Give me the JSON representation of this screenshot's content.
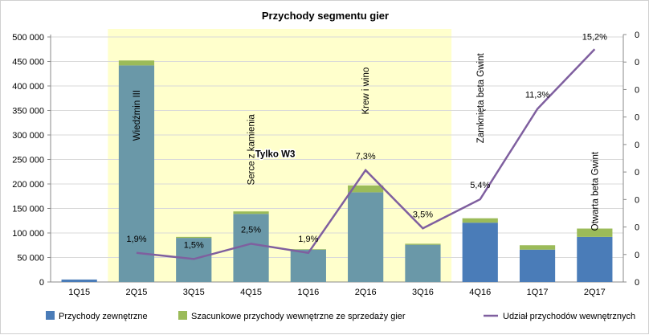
{
  "chart_data": {
    "type": "bar+line",
    "title": "Przychody segmentu gier",
    "categories": [
      "1Q15",
      "2Q15",
      "3Q15",
      "4Q15",
      "1Q16",
      "2Q16",
      "3Q16",
      "4Q16",
      "1Q17",
      "2Q17"
    ],
    "series": [
      {
        "name": "Przychody zewnętrzne",
        "type": "bar",
        "stack": "revenue",
        "values": [
          5000,
          442000,
          90000,
          139000,
          66000,
          183000,
          76000,
          121000,
          66000,
          92000
        ],
        "colors_by_point": [
          "#4a7cb8",
          "#6a98a8",
          "#6a98a8",
          "#6a98a8",
          "#6a98a8",
          "#6a98a8",
          "#6a98a8",
          "#4a7cb8",
          "#4a7cb8",
          "#4a7cb8"
        ]
      },
      {
        "name": "Szacunkowe przychody wewnętrzne ze sprzedaży gier",
        "type": "bar",
        "stack": "revenue",
        "values": [
          0,
          10000,
          2000,
          5000,
          1000,
          14000,
          2000,
          9000,
          9000,
          17000
        ],
        "color": "#9bbb59"
      },
      {
        "name": "Udział przychodów wewnętrznych",
        "type": "line",
        "axis": "right",
        "values": [
          null,
          1.9,
          1.5,
          2.5,
          1.9,
          7.3,
          3.5,
          5.4,
          11.3,
          15.2
        ],
        "labels": [
          "",
          "1,9%",
          "1,5%",
          "2,5%",
          "1,9%",
          "7,3%",
          "3,5%",
          "5,4%",
          "11,3%",
          "15,2%"
        ],
        "color": "#7f5f9f"
      }
    ],
    "y_left": {
      "ylim": [
        0,
        500000
      ],
      "ticks": [
        "0",
        "50 000",
        "100 000",
        "150 000",
        "200 000",
        "250 000",
        "300 000",
        "350 000",
        "400 000",
        "450 000",
        "500 000"
      ]
    },
    "y_right": {
      "ylim": [
        0,
        16
      ],
      "tick_labels": [
        "0",
        "0",
        "0",
        "0",
        "0",
        "0",
        "0",
        "0",
        "0",
        "0"
      ]
    },
    "highlight_range": [
      "2Q15",
      "3Q16"
    ],
    "highlight_color": "#ffffcc",
    "annotations": [
      {
        "text": "Wiedźmin III",
        "category": "2Q15",
        "value": 340000
      },
      {
        "text": "Serce z kamienia",
        "category": "4Q15",
        "value": 270000
      },
      {
        "text": "Krew i wino",
        "category": "2Q16",
        "value": 390000
      },
      {
        "text": "Zamknięta beta Gwint",
        "category": "4Q16",
        "value": 375000
      },
      {
        "text": "Otwarta beta Gwint",
        "category": "2Q17",
        "value": 185000
      },
      {
        "text": "Tylko W3",
        "category": "4Q15",
        "value": 255000,
        "color": "#5a3f8a",
        "bold": true
      }
    ],
    "legend": {
      "position": "bottom",
      "items": [
        {
          "label": "Przychody zewnętrzne",
          "color": "#4a7cb8",
          "kind": "box"
        },
        {
          "label": "Szacunkowe przychody wewnętrzne ze sprzedaży gier",
          "color": "#9bbb59",
          "kind": "box"
        },
        {
          "label": "Udział przychodów wewnętrznych",
          "color": "#7f5f9f",
          "kind": "line"
        }
      ]
    }
  }
}
